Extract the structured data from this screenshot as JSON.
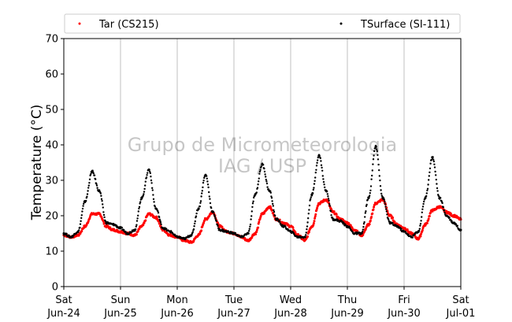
{
  "chart_data": {
    "type": "scatter",
    "ylabel": "Temperature (°C)",
    "ylim": [
      0,
      70
    ],
    "yticks": [
      0,
      10,
      20,
      30,
      40,
      50,
      60,
      70
    ],
    "xlim": [
      "2017-06-24 00:00",
      "2017-07-01 00:00"
    ],
    "x_tick_labels": [
      {
        "day": "Sat",
        "date": "Jun-24"
      },
      {
        "day": "Sun",
        "date": "Jun-25"
      },
      {
        "day": "Mon",
        "date": "Jun-26"
      },
      {
        "day": "Tue",
        "date": "Jun-27"
      },
      {
        "day": "Wed",
        "date": "Jun-28"
      },
      {
        "day": "Thu",
        "date": "Jun-29"
      },
      {
        "day": "Fri",
        "date": "Jun-30"
      },
      {
        "day": "Sat",
        "date": "Jul-01"
      }
    ],
    "grid": "vertical",
    "legend_position": "top",
    "watermark": [
      "Grupo de Micrometeorologia",
      "IAG / USP"
    ],
    "series": [
      {
        "name": "Tar (CS215)",
        "color": "#ff0000",
        "x": [
          "Jun-24 00:00",
          "Jun-24 03:00",
          "Jun-24 06:00",
          "Jun-24 09:00",
          "Jun-24 12:00",
          "Jun-24 15:00",
          "Jun-24 18:00",
          "Jun-24 21:00",
          "Jun-25 00:00",
          "Jun-25 03:00",
          "Jun-25 06:00",
          "Jun-25 09:00",
          "Jun-25 12:00",
          "Jun-25 15:00",
          "Jun-25 18:00",
          "Jun-25 21:00",
          "Jun-26 00:00",
          "Jun-26 03:00",
          "Jun-26 06:00",
          "Jun-26 09:00",
          "Jun-26 12:00",
          "Jun-26 15:00",
          "Jun-26 18:00",
          "Jun-26 21:00",
          "Jun-27 00:00",
          "Jun-27 03:00",
          "Jun-27 06:00",
          "Jun-27 09:00",
          "Jun-27 12:00",
          "Jun-27 15:00",
          "Jun-27 18:00",
          "Jun-27 21:00",
          "Jun-28 00:00",
          "Jun-28 03:00",
          "Jun-28 06:00",
          "Jun-28 09:00",
          "Jun-28 12:00",
          "Jun-28 15:00",
          "Jun-28 18:00",
          "Jun-28 21:00",
          "Jun-29 00:00",
          "Jun-29 03:00",
          "Jun-29 06:00",
          "Jun-29 09:00",
          "Jun-29 12:00",
          "Jun-29 15:00",
          "Jun-29 18:00",
          "Jun-29 21:00",
          "Jun-30 00:00",
          "Jun-30 03:00",
          "Jun-30 06:00",
          "Jun-30 09:00",
          "Jun-30 12:00",
          "Jun-30 15:00",
          "Jun-30 18:00",
          "Jun-30 21:00",
          "Jul-01 00:00"
        ],
        "values": [
          14.5,
          14.0,
          14.5,
          17.0,
          20.5,
          20.5,
          17.0,
          16.0,
          15.5,
          15.0,
          14.5,
          17.0,
          20.5,
          19.5,
          16.0,
          14.5,
          14.0,
          13.0,
          12.5,
          14.5,
          19.0,
          21.0,
          17.0,
          15.5,
          15.0,
          14.0,
          13.0,
          15.0,
          20.5,
          22.5,
          19.0,
          18.0,
          17.0,
          14.5,
          13.0,
          17.0,
          23.5,
          24.5,
          21.0,
          19.0,
          18.0,
          16.0,
          14.5,
          17.5,
          23.5,
          24.5,
          20.0,
          17.5,
          16.5,
          15.0,
          13.5,
          17.5,
          21.5,
          22.5,
          21.0,
          20.0,
          19.0
        ]
      },
      {
        "name": "TSurface (SI-111)",
        "color": "#000000",
        "x": [
          "Jun-24 00:00",
          "Jun-24 03:00",
          "Jun-24 06:00",
          "Jun-24 09:00",
          "Jun-24 12:00",
          "Jun-24 15:00",
          "Jun-24 18:00",
          "Jun-24 21:00",
          "Jun-25 00:00",
          "Jun-25 03:00",
          "Jun-25 06:00",
          "Jun-25 09:00",
          "Jun-25 12:00",
          "Jun-25 15:00",
          "Jun-25 18:00",
          "Jun-25 21:00",
          "Jun-26 00:00",
          "Jun-26 03:00",
          "Jun-26 06:00",
          "Jun-26 09:00",
          "Jun-26 12:00",
          "Jun-26 15:00",
          "Jun-26 18:00",
          "Jun-26 21:00",
          "Jun-27 00:00",
          "Jun-27 03:00",
          "Jun-27 06:00",
          "Jun-27 09:00",
          "Jun-27 12:00",
          "Jun-27 15:00",
          "Jun-27 18:00",
          "Jun-27 21:00",
          "Jun-28 00:00",
          "Jun-28 03:00",
          "Jun-28 06:00",
          "Jun-28 09:00",
          "Jun-28 12:00",
          "Jun-28 15:00",
          "Jun-28 18:00",
          "Jun-28 21:00",
          "Jun-29 00:00",
          "Jun-29 03:00",
          "Jun-29 06:00",
          "Jun-29 09:00",
          "Jun-29 12:00",
          "Jun-29 15:00",
          "Jun-29 18:00",
          "Jun-29 21:00",
          "Jun-30 00:00",
          "Jun-30 03:00",
          "Jun-30 06:00",
          "Jun-30 09:00",
          "Jun-30 12:00",
          "Jun-30 15:00",
          "Jun-30 18:00",
          "Jun-30 21:00",
          "Jul-01 00:00"
        ],
        "values": [
          15.0,
          14.0,
          15.5,
          24.0,
          32.5,
          27.0,
          18.0,
          17.5,
          16.5,
          15.0,
          16.0,
          25.0,
          33.0,
          22.0,
          16.5,
          15.5,
          14.0,
          13.5,
          14.5,
          22.0,
          31.5,
          21.0,
          16.0,
          15.5,
          15.0,
          14.0,
          15.0,
          26.0,
          34.5,
          27.0,
          19.0,
          17.0,
          15.5,
          14.0,
          14.0,
          26.0,
          37.0,
          27.0,
          19.0,
          18.5,
          17.0,
          15.0,
          15.0,
          25.0,
          39.5,
          25.0,
          18.0,
          17.0,
          15.5,
          14.0,
          15.5,
          25.0,
          36.5,
          25.0,
          20.0,
          18.0,
          16.0
        ]
      }
    ]
  }
}
